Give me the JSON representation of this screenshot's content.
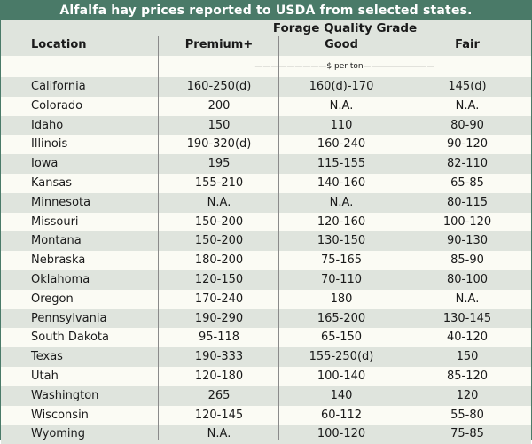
{
  "title": "Alfalfa hay prices reported to USDA from selected states.",
  "group_header": "Forage Quality Grade",
  "columns": {
    "location": "Location",
    "premium": "Premium+",
    "good": "Good",
    "fair": "Fair"
  },
  "units": "—————————$ per ton—————————",
  "colors": {
    "title_bar": "#4a7a68",
    "shaded_row": "#dfe4dd",
    "background": "#fbfbf4"
  },
  "rows": [
    {
      "location": "California",
      "premium": "160-250(d)",
      "good": "160(d)-170",
      "fair": "145(d)"
    },
    {
      "location": "Colorado",
      "premium": "200",
      "good": "N.A.",
      "fair": "N.A."
    },
    {
      "location": "Idaho",
      "premium": "150",
      "good": "110",
      "fair": "80-90"
    },
    {
      "location": "Illinois",
      "premium": "190-320(d)",
      "good": "160-240",
      "fair": "90-120"
    },
    {
      "location": "Iowa",
      "premium": "195",
      "good": "115-155",
      "fair": "82-110"
    },
    {
      "location": "Kansas",
      "premium": "155-210",
      "good": "140-160",
      "fair": "65-85"
    },
    {
      "location": "Minnesota",
      "premium": "N.A.",
      "good": "N.A.",
      "fair": "80-115"
    },
    {
      "location": "Missouri",
      "premium": "150-200",
      "good": "120-160",
      "fair": "100-120"
    },
    {
      "location": "Montana",
      "premium": "150-200",
      "good": "130-150",
      "fair": "90-130"
    },
    {
      "location": "Nebraska",
      "premium": "180-200",
      "good": "75-165",
      "fair": "85-90"
    },
    {
      "location": "Oklahoma",
      "premium": "120-150",
      "good": "70-110",
      "fair": "80-100"
    },
    {
      "location": "Oregon",
      "premium": "170-240",
      "good": "180",
      "fair": "N.A."
    },
    {
      "location": "Pennsylvania",
      "premium": "190-290",
      "good": "165-200",
      "fair": "130-145"
    },
    {
      "location": "South Dakota",
      "premium": "95-118",
      "good": "65-150",
      "fair": "40-120"
    },
    {
      "location": "Texas",
      "premium": "190-333",
      "good": "155-250(d)",
      "fair": "150"
    },
    {
      "location": "Utah",
      "premium": "120-180",
      "good": "100-140",
      "fair": "85-120"
    },
    {
      "location": "Washington",
      "premium": "265",
      "good": "140",
      "fair": "120"
    },
    {
      "location": "Wisconsin",
      "premium": "120-145",
      "good": "60-112",
      "fair": "55-80"
    },
    {
      "location": "Wyoming",
      "premium": "N.A.",
      "good": "100-120",
      "fair": "75-85"
    }
  ]
}
